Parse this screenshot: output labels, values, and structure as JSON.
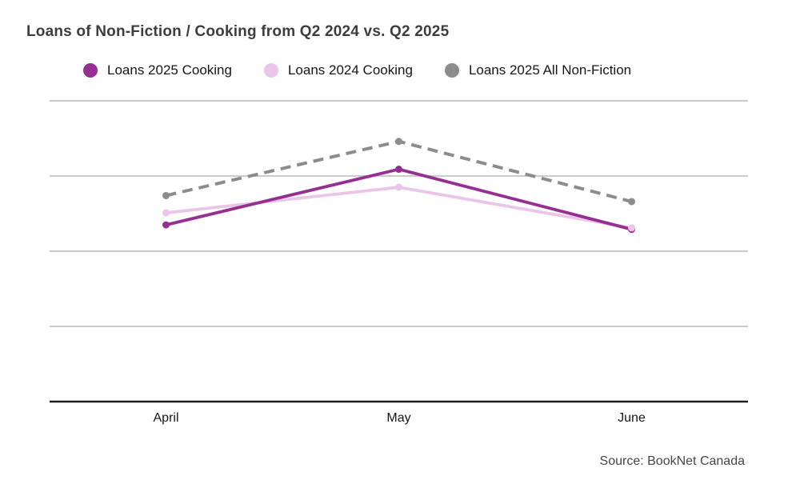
{
  "title": "Loans of Non-Fiction / Cooking from Q2 2024 vs. Q2 2025",
  "source": "Source: BookNet Canada",
  "legend": {
    "items": [
      {
        "label": "Loans 2025 Cooking",
        "color": "#952f92"
      },
      {
        "label": "Loans 2024 Cooking",
        "color": "#eac5e8"
      },
      {
        "label": "Loans 2025 All Non-Fiction",
        "color": "#8c8c8c"
      }
    ]
  },
  "colors": {
    "background": "#ffffff",
    "title_text": "#3d3d3d",
    "axis_line": "#1f1f1f",
    "gridline": "#cbcbcb",
    "label_text": "#161616",
    "source_text": "#454545",
    "series_purple": "#952f92",
    "series_pink": "#eac5e8",
    "series_gray": "#8c8c8c"
  },
  "chart_data": {
    "type": "line",
    "title": "Loans of Non-Fiction / Cooking from Q2 2024 vs. Q2 2025",
    "categories": [
      "April",
      "May",
      "June"
    ],
    "series": [
      {
        "name": "Loans 2025 Cooking",
        "color": "#952f92",
        "style": "solid",
        "values": [
          2.35,
          3.09,
          2.29
        ]
      },
      {
        "name": "Loans 2024 Cooking",
        "color": "#eac5e8",
        "style": "solid",
        "values": [
          2.51,
          2.85,
          2.31
        ]
      },
      {
        "name": "Loans 2025 All Non-Fiction",
        "color": "#8c8c8c",
        "style": "dashed",
        "values": [
          2.74,
          3.46,
          2.66
        ]
      }
    ],
    "xlabel": "",
    "ylabel": "",
    "ylim": [
      0,
      4.2
    ],
    "y_axis_tick_labels_visible": false,
    "gridline_values": [
      1,
      2,
      3,
      4
    ],
    "grid": "horizontal",
    "legend_position": "top"
  }
}
